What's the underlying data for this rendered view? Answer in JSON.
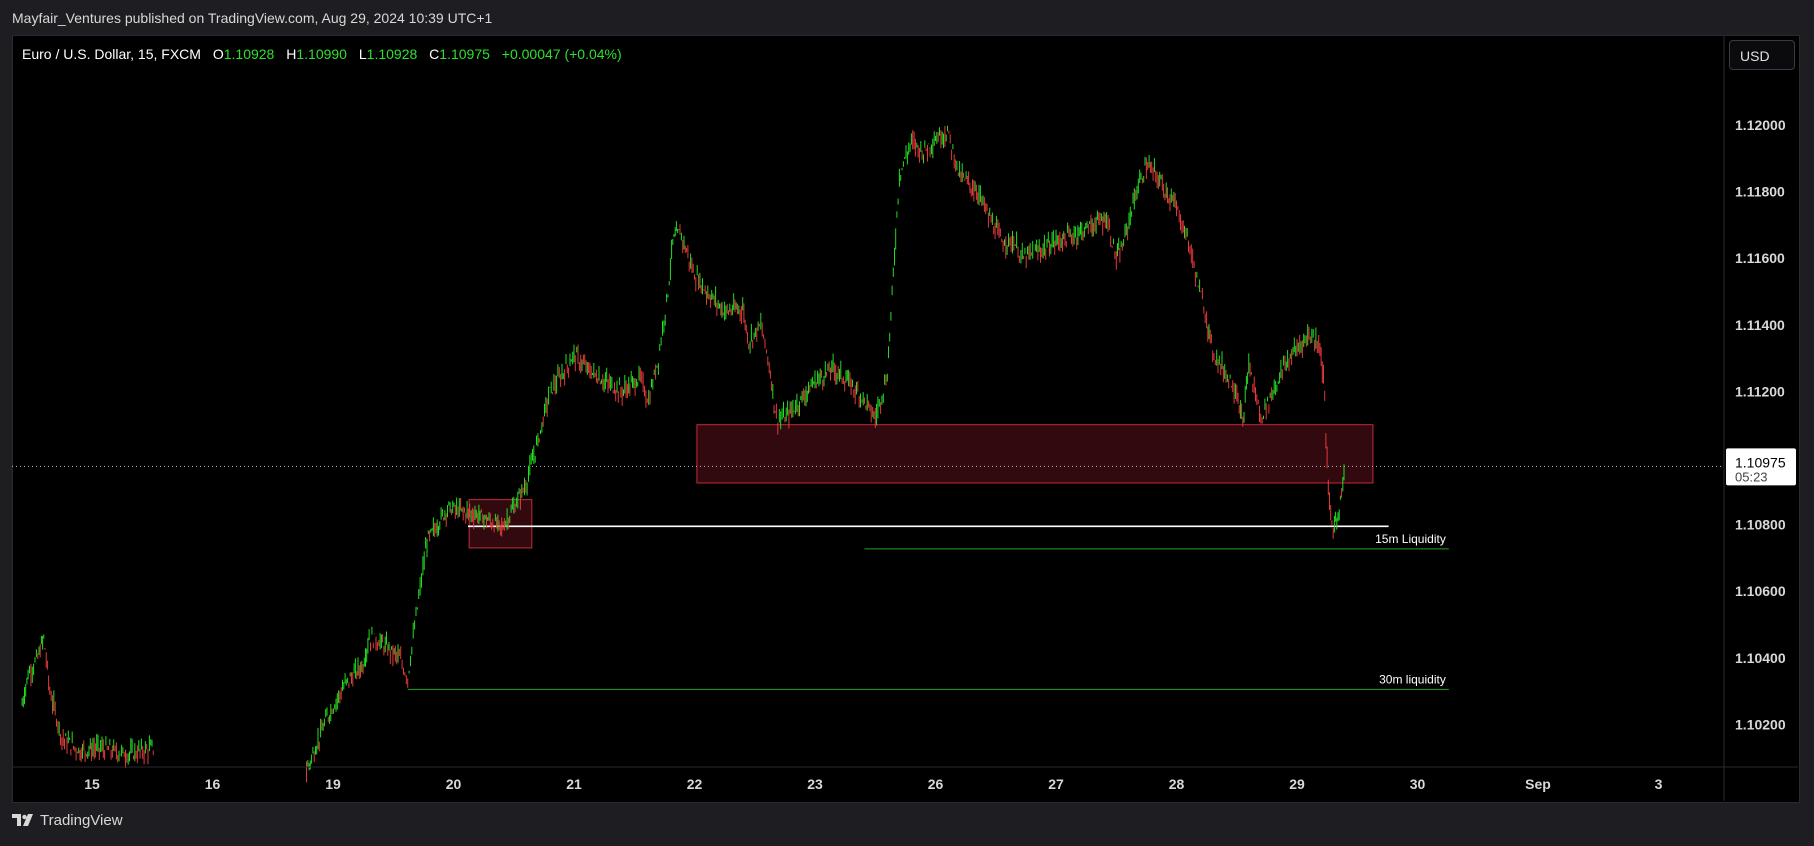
{
  "publisher_line": "Mayfair_Ventures published on TradingView.com, Aug 29, 2024 10:39 UTC+1",
  "footer": {
    "brand": "TradingView"
  },
  "symbol_header": {
    "title": "Euro / U.S. Dollar, 15, FXCM",
    "o_label": "O",
    "o_value": "1.10928",
    "h_label": "H",
    "h_value": "1.10990",
    "l_label": "L",
    "l_value": "1.10928",
    "c_label": "C",
    "c_value": "1.10975",
    "change": "+0.00047 (+0.04%)"
  },
  "currency_button": "USD",
  "colors": {
    "up": "#22dd22",
    "down": "#e23a3a",
    "zone_border": "#c8283a",
    "zone_fill": "#3a0a12",
    "level_white": "#ffffff",
    "level_green": "#23a323",
    "axis_text": "#d8d8d8"
  },
  "chart_data": {
    "type": "line",
    "title": "Euro / U.S. Dollar, 15, FXCM",
    "note": "15-minute candlesticks approximated as high/low wicks sampled from the visible price path",
    "ylim": [
      1.1,
      1.122
    ],
    "y_ticks": [
      "1.12000",
      "1.11800",
      "1.11600",
      "1.11400",
      "1.11200",
      "1.10800",
      "1.10600",
      "1.10400",
      "1.10200"
    ],
    "x_ticks": [
      {
        "label": "15",
        "day": 0
      },
      {
        "label": "16",
        "day": 1
      },
      {
        "label": "19",
        "day": 2
      },
      {
        "label": "20",
        "day": 3
      },
      {
        "label": "21",
        "day": 4
      },
      {
        "label": "22",
        "day": 5
      },
      {
        "label": "23",
        "day": 6
      },
      {
        "label": "26",
        "day": 7
      },
      {
        "label": "27",
        "day": 8
      },
      {
        "label": "28",
        "day": 9
      },
      {
        "label": "29",
        "day": 10
      },
      {
        "label": "30",
        "day": 11
      },
      {
        "label": "Sep",
        "day": 12
      },
      {
        "label": "3",
        "day": 13
      }
    ],
    "price_path": [
      [
        -0.58,
        1.1026
      ],
      [
        -0.53,
        1.1035
      ],
      [
        -0.45,
        1.104
      ],
      [
        -0.4,
        1.1046
      ],
      [
        -0.35,
        1.103
      ],
      [
        -0.25,
        1.1016
      ],
      [
        -0.1,
        1.1012
      ],
      [
        0.05,
        1.1013
      ],
      [
        0.3,
        1.1011
      ],
      [
        0.52,
        1.1013
      ],
      [
        1.78,
        1.1006
      ],
      [
        1.95,
        1.1022
      ],
      [
        2.1,
        1.1032
      ],
      [
        2.25,
        1.1038
      ],
      [
        2.3,
        1.1046
      ],
      [
        2.38,
        1.1045
      ],
      [
        2.55,
        1.104
      ],
      [
        2.62,
        1.1034
      ],
      [
        2.7,
        1.1055
      ],
      [
        2.78,
        1.1075
      ],
      [
        2.95,
        1.1085
      ],
      [
        3.2,
        1.1083
      ],
      [
        3.4,
        1.1079
      ],
      [
        3.5,
        1.1085
      ],
      [
        3.6,
        1.1092
      ],
      [
        3.7,
        1.1105
      ],
      [
        3.8,
        1.112
      ],
      [
        3.9,
        1.1125
      ],
      [
        4.0,
        1.1131
      ],
      [
        4.1,
        1.1127
      ],
      [
        4.25,
        1.1123
      ],
      [
        4.4,
        1.112
      ],
      [
        4.55,
        1.1124
      ],
      [
        4.62,
        1.1117
      ],
      [
        4.7,
        1.113
      ],
      [
        4.78,
        1.115
      ],
      [
        4.82,
        1.1165
      ],
      [
        4.88,
        1.1168
      ],
      [
        5.0,
        1.1155
      ],
      [
        5.1,
        1.115
      ],
      [
        5.25,
        1.1144
      ],
      [
        5.4,
        1.1145
      ],
      [
        5.45,
        1.1135
      ],
      [
        5.55,
        1.114
      ],
      [
        5.62,
        1.1128
      ],
      [
        5.68,
        1.1112
      ],
      [
        5.75,
        1.1112
      ],
      [
        5.85,
        1.1116
      ],
      [
        6.0,
        1.1123
      ],
      [
        6.15,
        1.1127
      ],
      [
        6.3,
        1.1122
      ],
      [
        6.4,
        1.1118
      ],
      [
        6.5,
        1.1112
      ],
      [
        6.6,
        1.1125
      ],
      [
        6.65,
        1.1155
      ],
      [
        6.7,
        1.1185
      ],
      [
        6.8,
        1.1195
      ],
      [
        6.9,
        1.1192
      ],
      [
        7.0,
        1.1196
      ],
      [
        7.1,
        1.1198
      ],
      [
        7.2,
        1.1185
      ],
      [
        7.35,
        1.118
      ],
      [
        7.45,
        1.1172
      ],
      [
        7.55,
        1.1165
      ],
      [
        7.65,
        1.1165
      ],
      [
        7.72,
        1.116
      ],
      [
        7.85,
        1.1162
      ],
      [
        8.0,
        1.1165
      ],
      [
        8.15,
        1.1167
      ],
      [
        8.3,
        1.117
      ],
      [
        8.42,
        1.1172
      ],
      [
        8.5,
        1.116
      ],
      [
        8.55,
        1.1163
      ],
      [
        8.65,
        1.1178
      ],
      [
        8.75,
        1.1188
      ],
      [
        8.85,
        1.1184
      ],
      [
        9.0,
        1.1175
      ],
      [
        9.1,
        1.1165
      ],
      [
        9.18,
        1.1152
      ],
      [
        9.25,
        1.1142
      ],
      [
        9.3,
        1.1132
      ],
      [
        9.4,
        1.1126
      ],
      [
        9.5,
        1.112
      ],
      [
        9.55,
        1.111
      ],
      [
        9.6,
        1.1128
      ],
      [
        9.7,
        1.1112
      ],
      [
        9.8,
        1.112
      ],
      [
        9.9,
        1.1128
      ],
      [
        10.0,
        1.1133
      ],
      [
        10.1,
        1.1137
      ],
      [
        10.18,
        1.1135
      ],
      [
        10.22,
        1.1125
      ],
      [
        10.26,
        1.109
      ],
      [
        10.3,
        1.1078
      ],
      [
        10.35,
        1.1085
      ],
      [
        10.4,
        1.1097
      ]
    ],
    "zones": [
      {
        "from_day": 3.13,
        "to_day": 3.65,
        "top": 1.10875,
        "bottom": 1.1073
      },
      {
        "from_day": 5.02,
        "to_day": 10.63,
        "top": 1.111,
        "bottom": 1.10925
      }
    ],
    "levels": [
      {
        "from_day": 3.12,
        "to_day": 10.76,
        "price": 1.10795,
        "label": "",
        "color_key": "level_white"
      },
      {
        "from_day": 6.41,
        "to_day": 11.26,
        "price": 1.10727,
        "label": "15m Liquidity",
        "color_key": "level_green"
      },
      {
        "from_day": 2.62,
        "to_day": 11.26,
        "price": 1.10305,
        "label": "30m liquidity",
        "color_key": "level_green"
      }
    ],
    "current_price": {
      "price": 1.10975,
      "label": "1.10975",
      "countdown": "05:23"
    }
  }
}
